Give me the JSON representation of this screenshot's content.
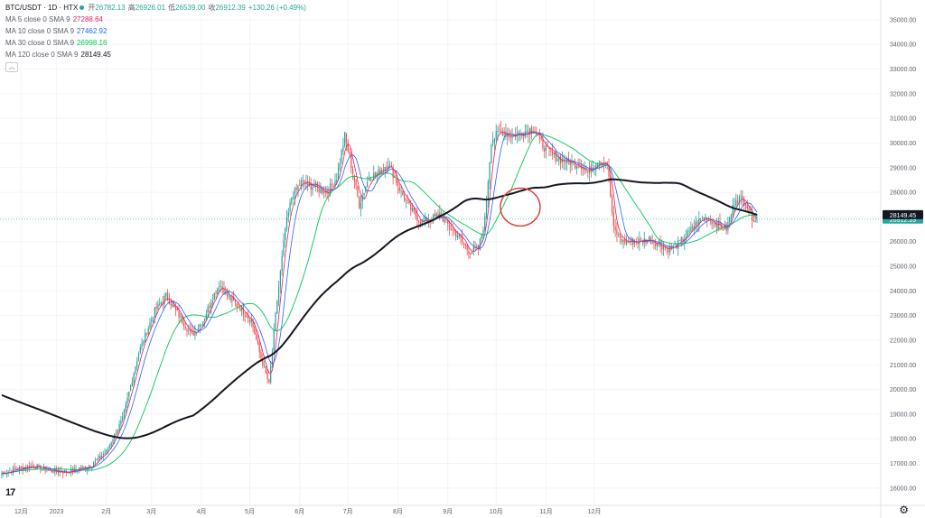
{
  "header": {
    "symbol": "BTC/USDT · 1D · HTX",
    "ohlc": [
      {
        "label": "开",
        "value": "26782.13"
      },
      {
        "label": "高",
        "value": "26926.01"
      },
      {
        "label": "低",
        "value": "26539.00"
      },
      {
        "label": "收",
        "value": "26912.39"
      },
      {
        "label": "",
        "value": "+130.26 (+0.49%)"
      }
    ]
  },
  "indicators": [
    {
      "label": "MA 5 close 0 SMA 9",
      "value": "27288.64",
      "color": "#e91e63"
    },
    {
      "label": "MA 10 close 0 SMA 9",
      "value": "27462.92",
      "color": "#2962ff"
    },
    {
      "label": "MA 30 close 0 SMA 9",
      "value": "26998.16",
      "color": "#00c853"
    },
    {
      "label": "MA 120 close 0 SMA 9",
      "value": "28149.45",
      "color": "#131722"
    }
  ],
  "collapse_icon": "chevron-up-icon",
  "logo_text": "17",
  "settings_icon": "gear-icon",
  "colors": {
    "up": "#26a69a",
    "down": "#ef5350",
    "ma5": "#e91e63",
    "ma10": "#2962ff",
    "ma30": "#00c853",
    "ma120": "#131722",
    "circle": "#e53935"
  },
  "chart_data": {
    "type": "candlestick",
    "x_tick_labels": [
      "12月",
      "2023",
      "2月",
      "3月",
      "4月",
      "5月",
      "6月",
      "7月",
      "8月",
      "9月",
      "10月",
      "11月",
      "12月"
    ],
    "y_tick_labels": [
      "16000.00",
      "17000.00",
      "18000.00",
      "19000.00",
      "20000.00",
      "21000.00",
      "22000.00",
      "23000.00",
      "24000.00",
      "25000.00",
      "26000.00",
      "27000.00",
      "28000.00",
      "29000.00",
      "30000.00",
      "31000.00",
      "32000.00",
      "33000.00",
      "34000.00",
      "35000.00"
    ],
    "ylim": [
      15300,
      35800
    ],
    "current_price_label": "26912.39",
    "ma120_price_label": "28149.45",
    "annotation": {
      "type": "circle",
      "date_index": 313,
      "price": 27400
    },
    "series_points": [
      [
        0,
        16600
      ],
      [
        10,
        16800
      ],
      [
        20,
        16900
      ],
      [
        30,
        16700
      ],
      [
        40,
        16650
      ],
      [
        55,
        16900
      ],
      [
        65,
        17500
      ],
      [
        75,
        18800
      ],
      [
        85,
        21500
      ],
      [
        95,
        23200
      ],
      [
        102,
        23800
      ],
      [
        110,
        23000
      ],
      [
        118,
        22200
      ],
      [
        125,
        22800
      ],
      [
        130,
        23600
      ],
      [
        135,
        24300
      ],
      [
        140,
        23800
      ],
      [
        148,
        23300
      ],
      [
        155,
        22800
      ],
      [
        160,
        21500
      ],
      [
        166,
        20200
      ],
      [
        170,
        23000
      ],
      [
        176,
        26500
      ],
      [
        180,
        27800
      ],
      [
        186,
        28400
      ],
      [
        195,
        28200
      ],
      [
        202,
        28000
      ],
      [
        208,
        28600
      ],
      [
        213,
        30300
      ],
      [
        218,
        28800
      ],
      [
        222,
        27500
      ],
      [
        228,
        28600
      ],
      [
        234,
        28800
      ],
      [
        240,
        29200
      ],
      [
        248,
        28000
      ],
      [
        254,
        27300
      ],
      [
        260,
        26800
      ],
      [
        266,
        26900
      ],
      [
        272,
        27100
      ],
      [
        278,
        26600
      ],
      [
        284,
        26200
      ],
      [
        290,
        25600
      ],
      [
        296,
        25700
      ],
      [
        300,
        26900
      ],
      [
        304,
        30100
      ],
      [
        310,
        30500
      ],
      [
        316,
        30300
      ],
      [
        322,
        30400
      ],
      [
        330,
        30600
      ],
      [
        336,
        29900
      ],
      [
        342,
        29500
      ],
      [
        348,
        29300
      ],
      [
        354,
        29200
      ],
      [
        360,
        29100
      ],
      [
        364,
        28800
      ],
      [
        370,
        29300
      ],
      [
        376,
        29200
      ],
      [
        380,
        26500
      ],
      [
        386,
        26000
      ],
      [
        394,
        26000
      ],
      [
        402,
        26100
      ],
      [
        408,
        25900
      ],
      [
        414,
        25700
      ],
      [
        420,
        25900
      ],
      [
        426,
        26300
      ],
      [
        432,
        26800
      ],
      [
        438,
        27000
      ],
      [
        444,
        26700
      ],
      [
        450,
        26500
      ],
      [
        456,
        27800
      ],
      [
        462,
        27600
      ],
      [
        466,
        27000
      ],
      [
        469,
        26912
      ]
    ]
  }
}
